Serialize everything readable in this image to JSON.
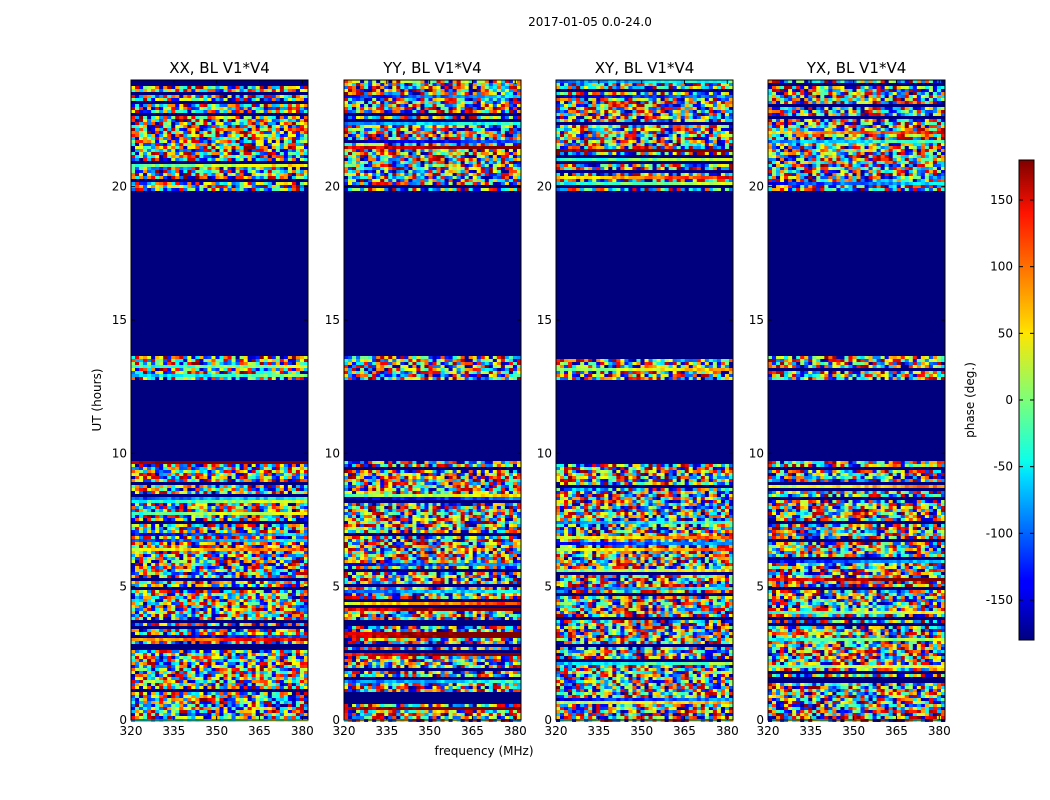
{
  "chart_data": {
    "type": "heatmap",
    "title": "2017-01-05 0.0-24.0",
    "xlabel": "frequency (MHz)",
    "ylabel": "UT (hours)",
    "xlim": [
      320,
      382
    ],
    "ylim": [
      0,
      24
    ],
    "x_ticks": [
      320,
      335,
      350,
      365,
      380
    ],
    "y_ticks": [
      0,
      5,
      10,
      15,
      20
    ],
    "panels": [
      {
        "name": "XX, BL V1*V4"
      },
      {
        "name": "YY, BL V1*V4"
      },
      {
        "name": "XY, BL V1*V4"
      },
      {
        "name": "YX, BL V1*V4"
      }
    ],
    "colorbar": {
      "label": "phase (deg.)",
      "range": [
        -180,
        180
      ],
      "ticks": [
        -150,
        -100,
        -50,
        0,
        50,
        100,
        150
      ],
      "colormap": "jet"
    },
    "blank_bands_hours": [
      [
        9.7,
        12.7
      ],
      [
        13.7,
        19.85
      ]
    ],
    "blank_color": "#00007f"
  }
}
